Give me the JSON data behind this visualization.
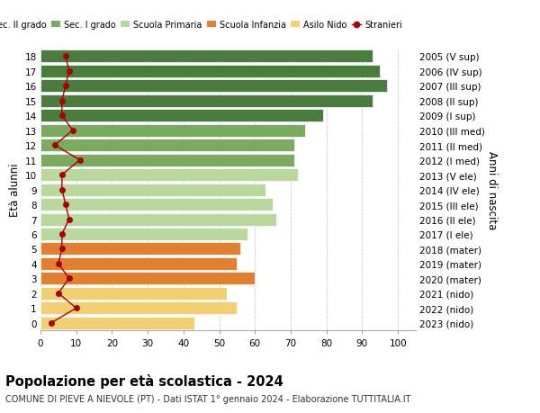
{
  "ages": [
    18,
    17,
    16,
    15,
    14,
    13,
    12,
    11,
    10,
    9,
    8,
    7,
    6,
    5,
    4,
    3,
    2,
    1,
    0
  ],
  "right_labels": [
    "2005 (V sup)",
    "2006 (IV sup)",
    "2007 (III sup)",
    "2008 (II sup)",
    "2009 (I sup)",
    "2010 (III med)",
    "2011 (II med)",
    "2012 (I med)",
    "2013 (V ele)",
    "2014 (IV ele)",
    "2015 (III ele)",
    "2016 (II ele)",
    "2017 (I ele)",
    "2018 (mater)",
    "2019 (mater)",
    "2020 (mater)",
    "2021 (nido)",
    "2022 (nido)",
    "2023 (nido)"
  ],
  "bar_values": [
    93,
    95,
    97,
    93,
    79,
    74,
    71,
    71,
    72,
    63,
    65,
    66,
    58,
    56,
    55,
    60,
    52,
    55,
    43
  ],
  "bar_colors": [
    "#4a7c3f",
    "#4a7c3f",
    "#4a7c3f",
    "#4a7c3f",
    "#4a7c3f",
    "#7aab5e",
    "#7aab5e",
    "#7aab5e",
    "#b8d89e",
    "#b8d89e",
    "#b8d89e",
    "#b8d89e",
    "#b8d89e",
    "#e08030",
    "#e08030",
    "#e08030",
    "#f0d070",
    "#f0d070",
    "#f0d070"
  ],
  "stranieri_values": [
    7,
    8,
    7,
    6,
    6,
    9,
    4,
    11,
    6,
    6,
    7,
    8,
    6,
    6,
    5,
    8,
    5,
    10,
    3
  ],
  "legend_labels": [
    "Sec. II grado",
    "Sec. I grado",
    "Scuola Primaria",
    "Scuola Infanzia",
    "Asilo Nido",
    "Stranieri"
  ],
  "legend_colors": [
    "#4a7c3f",
    "#7aab5e",
    "#b8d89e",
    "#e08030",
    "#f0d070",
    "#cc0000"
  ],
  "ylabel_left": "Età alunni",
  "ylabel_right": "Anni di nascita",
  "title": "Popolazione per età scolastica - 2024",
  "subtitle": "COMUNE DI PIEVE A NIEVOLE (PT) - Dati ISTAT 1° gennaio 2024 - Elaborazione TUTTITALIA.IT",
  "xlim": [
    0,
    105
  ],
  "grid_color": "#cccccc",
  "bar_height": 0.85,
  "stranieri_color": "#aa0000",
  "bg_color": "#ffffff"
}
